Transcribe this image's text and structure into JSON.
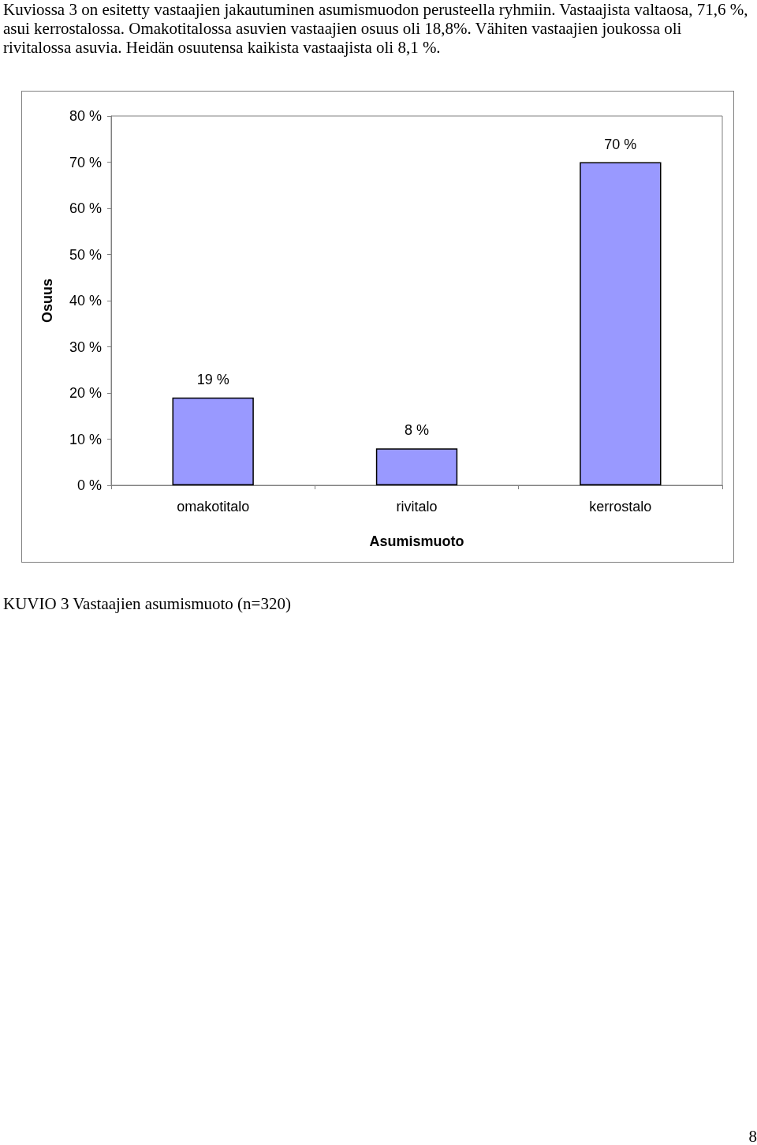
{
  "chart_data": {
    "type": "bar",
    "annotations": [
      "Kuviossa 3 on esitetty vastaajien jakautuminen asumismuodon perusteella ryhmiin. Vastaajista valtaosa, 71,6 %, asui kerrostalossa. Omakotitalossa asuvien vastaajien osuus oli 18,8%. Vähiten vastaajien joukossa oli rivitalossa asuvia. Heidän osuutensa kaikista vastaajista oli 8,1 %.",
      "KUVIO 3 Vastaajien asumismuoto (n=320)",
      "8"
    ],
    "xlabel": "Asumismuoto",
    "ylabel": "Osuus",
    "categories": [
      "omakotitalo",
      "rivitalo",
      "kerrostalo"
    ],
    "values": [
      19,
      8,
      70
    ],
    "color": "#9999ff",
    "value_labels": [
      "19 %",
      "8 %",
      "70 %"
    ],
    "ylim": [
      0,
      80
    ],
    "yticks": [
      {
        "value": 0,
        "label": "0 %"
      },
      {
        "value": 10,
        "label": "10 %"
      },
      {
        "value": 20,
        "label": "20 %"
      },
      {
        "value": 30,
        "label": "30 %"
      },
      {
        "value": 40,
        "label": "40 %"
      },
      {
        "value": 50,
        "label": "50 %"
      },
      {
        "value": 60,
        "label": "60 %"
      },
      {
        "value": 70,
        "label": "70 %"
      },
      {
        "value": 80,
        "label": "80 %"
      }
    ],
    "grid": false
  }
}
